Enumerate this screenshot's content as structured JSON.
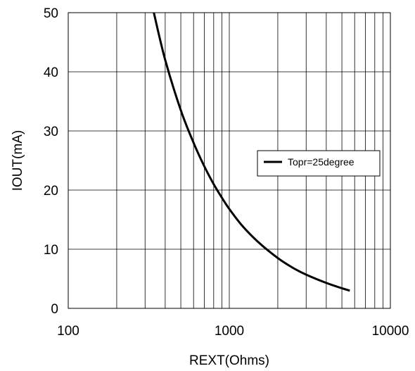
{
  "chart_data": {
    "type": "line",
    "title": "",
    "xlabel": "REXT(Ohms)",
    "ylabel": "IOUT(mA)",
    "xscale": "log",
    "xlim": [
      100,
      10000
    ],
    "ylim": [
      0,
      50
    ],
    "xticks": [
      100,
      1000,
      10000
    ],
    "xtick_labels": [
      "100",
      "1000",
      "10000"
    ],
    "yticks": [
      0,
      10,
      20,
      30,
      40,
      50
    ],
    "ytick_labels": [
      "0",
      "10",
      "20",
      "30",
      "40",
      "50"
    ],
    "grid": true,
    "legend_position": "right",
    "series": [
      {
        "name": "Topr=25degree",
        "color": "#000000",
        "x": [
          340,
          400,
          500,
          600,
          700,
          800,
          900,
          1000,
          1200,
          1500,
          2000,
          2500,
          3000,
          4000,
          5000,
          5600
        ],
        "y": [
          50,
          42,
          33.5,
          28,
          24,
          21,
          18.7,
          16.8,
          14,
          11.3,
          8.5,
          6.8,
          5.7,
          4.3,
          3.4,
          3.0
        ]
      }
    ]
  }
}
